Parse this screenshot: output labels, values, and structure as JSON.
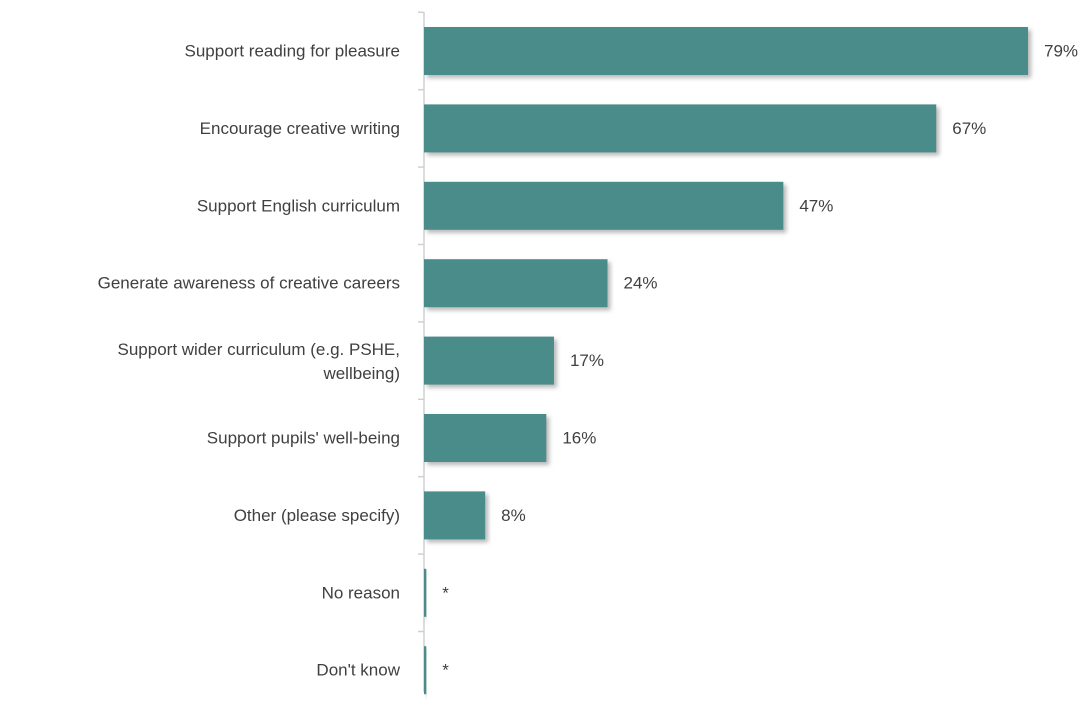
{
  "chart_data": {
    "type": "bar",
    "orientation": "horizontal",
    "categories": [
      "Support reading for pleasure",
      "Encourage creative writing",
      "Support English curriculum",
      "Generate awareness of creative careers",
      "Support wider curriculum (e.g. PSHE, wellbeing)",
      "Support pupils' well-being",
      "Other (please specify)",
      "No reason",
      "Don't know"
    ],
    "values": [
      79,
      67,
      47,
      24,
      17,
      16,
      8,
      0.3,
      0.3
    ],
    "data_labels": [
      "79%",
      "67%",
      "47%",
      "24%",
      "17%",
      "16%",
      "8%",
      "*",
      "*"
    ],
    "xlim": [
      0,
      79
    ],
    "grid": false,
    "legend": "none",
    "colors": {
      "bar": "#4a8c8a",
      "bar_shadow": "#c4c4c4",
      "axis": "#d0d0d0",
      "label_text": "#404040"
    }
  }
}
